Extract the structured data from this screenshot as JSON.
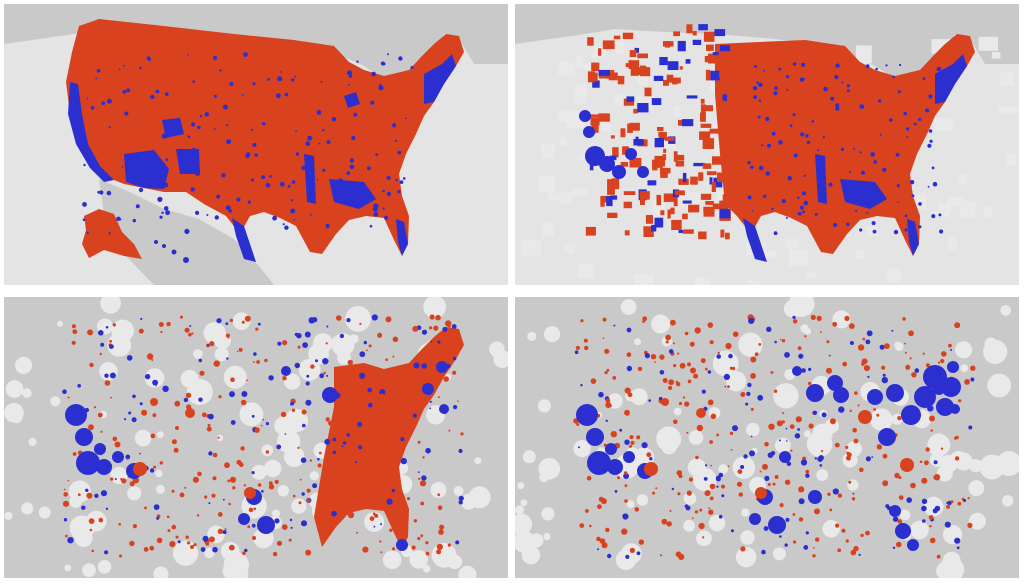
{
  "panels": [
    {
      "id": "p1",
      "style": "filled-counties"
    },
    {
      "id": "p2",
      "style": "resized-counties"
    },
    {
      "id": "p3",
      "style": "dorling-bubbles"
    },
    {
      "id": "p4",
      "style": "dorling-bubbles-population"
    }
  ],
  "colors": {
    "republican": "#d9421f",
    "democrat": "#2b2fd0",
    "land": "#c9c9c9",
    "water": "#e4e4e4",
    "empty_cell": "#e9e9e9"
  }
}
